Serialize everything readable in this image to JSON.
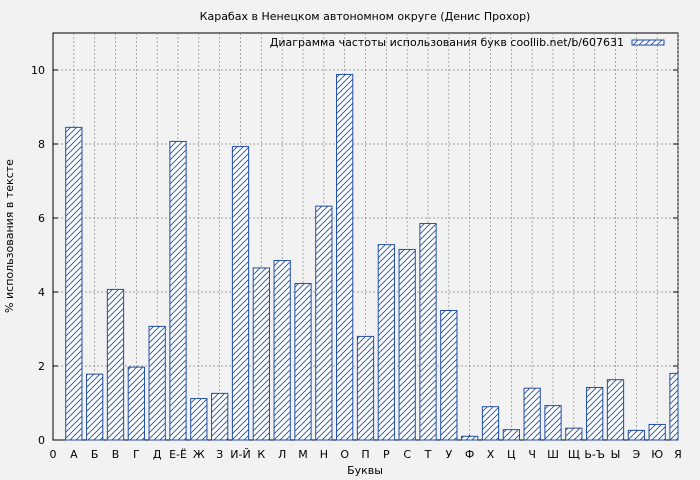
{
  "chart_data": {
    "type": "bar",
    "title": "Карабах в Ненецком автономном округе (Денис Прохор)",
    "xlabel": "Буквы",
    "ylabel": "% использования в тексте",
    "legend": "Диаграмма частоты использования букв coollib.net/b/607631",
    "legend_position": "top-right",
    "grid": true,
    "ylim": [
      0,
      11
    ],
    "yticks": [
      0,
      2,
      4,
      6,
      8,
      10
    ],
    "x_start_label": "0",
    "categories": [
      "А",
      "Б",
      "В",
      "Г",
      "Д",
      "Е-Ё",
      "Ж",
      "З",
      "И-Й",
      "К",
      "Л",
      "М",
      "Н",
      "О",
      "П",
      "Р",
      "С",
      "Т",
      "У",
      "Ф",
      "Х",
      "Ц",
      "Ч",
      "Ш",
      "Щ",
      "Ь-Ъ",
      "Ы",
      "Э",
      "Ю",
      "Я"
    ],
    "values": [
      8.45,
      1.78,
      4.07,
      1.97,
      3.07,
      8.07,
      1.12,
      1.26,
      7.93,
      4.65,
      4.85,
      4.23,
      6.32,
      9.88,
      2.8,
      5.28,
      5.15,
      5.85,
      3.5,
      0.1,
      0.9,
      0.28,
      1.4,
      0.93,
      0.32,
      1.42,
      1.63,
      0.26,
      0.42,
      1.8
    ],
    "colors": {
      "bar_stroke": "#1f4ea8",
      "hatch": "#1f4ea8",
      "bar_fill": "#ffffff",
      "grid": "#888888",
      "plot_bg": "#f2f2f2"
    }
  }
}
